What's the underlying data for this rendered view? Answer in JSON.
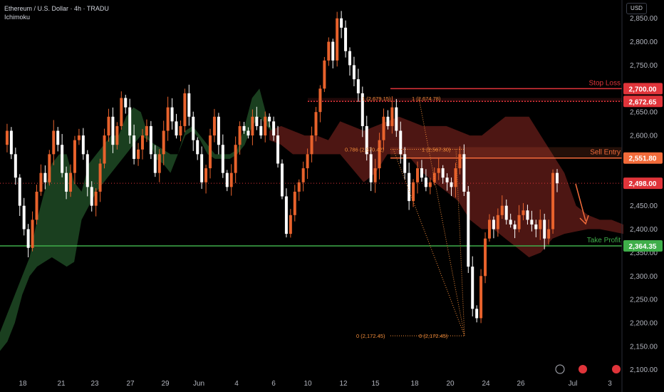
{
  "header": {
    "symbol_line": "Ethereum / U.S. Dollar · 4h · TRADU",
    "indicator": "Ichimoku"
  },
  "currency_button": "USD",
  "colors": {
    "background": "#000000",
    "bull_candle": "#e8622c",
    "bear_candle": "#ffffff",
    "bull_cloud": "#1f4a24",
    "bear_cloud": "#5a1a16",
    "stop_loss": "#e0343a",
    "sell_entry": "#f26b3a",
    "take_profit": "#3fae4a",
    "price_line": "#e0343a",
    "fib": "#f28c3a"
  },
  "chart_data": {
    "type": "candlestick",
    "y_axis": {
      "ticks": [
        "2,850.00",
        "2,800.00",
        "2,750.00",
        "2,700.00",
        "2,650.00",
        "2,600.00",
        "2,550.00",
        "2,500.00",
        "2,450.00",
        "2,400.00",
        "2,350.00",
        "2,300.00",
        "2,250.00",
        "2,200.00",
        "2,150.00",
        "2,100.00"
      ],
      "range": [
        2092,
        2880
      ]
    },
    "x_axis": {
      "ticks": [
        "18",
        "21",
        "23",
        "27",
        "29",
        "Jun",
        "4",
        "6",
        "10",
        "12",
        "15",
        "18",
        "20",
        "24",
        "26",
        "Jul",
        "3"
      ]
    },
    "levels": [
      {
        "name": "Stop Loss",
        "value": 2700.0,
        "badge": "2,700.00"
      },
      {
        "name": "Sell Entry",
        "value": 2551.8,
        "badge": "2,551.80"
      },
      {
        "name": "Take Profit",
        "value": 2364.35,
        "badge": "2,364.35"
      }
    ],
    "dotted_level": {
      "value": 2672.65,
      "badge": "2,672.65"
    },
    "current_price": {
      "value": 2498.0,
      "badge": "2,498.00"
    },
    "fib_labels": [
      "1 (2,679.15)",
      "1 (2,674.78)",
      "0.786 (2,570.42)",
      "1 (2,567.30)",
      "0 (2,172.45)",
      "0 (2,172.45)"
    ],
    "price_path": [
      2580,
      2610,
      2560,
      2510,
      2450,
      2400,
      2360,
      2420,
      2480,
      2520,
      2500,
      2560,
      2610,
      2580,
      2520,
      2480,
      2520,
      2590,
      2600,
      2560,
      2490,
      2450,
      2480,
      2540,
      2600,
      2640,
      2580,
      2620,
      2680,
      2660,
      2600,
      2550,
      2570,
      2600,
      2620,
      2560,
      2520,
      2560,
      2610,
      2660,
      2630,
      2600,
      2620,
      2690,
      2640,
      2590,
      2560,
      2500,
      2530,
      2600,
      2640,
      2580,
      2520,
      2490,
      2520,
      2580,
      2620,
      2610,
      2600,
      2640,
      2620,
      2600,
      2640,
      2630,
      2600,
      2540,
      2470,
      2390,
      2430,
      2480,
      2500,
      2530,
      2560,
      2600,
      2650,
      2700,
      2760,
      2800,
      2760,
      2850,
      2830,
      2780,
      2750,
      2720,
      2690,
      2620,
      2560,
      2500,
      2530,
      2590,
      2640,
      2620,
      2660,
      2610,
      2560,
      2520,
      2460,
      2500,
      2530,
      2510,
      2490,
      2500,
      2520,
      2530,
      2510,
      2500,
      2490,
      2530,
      2560,
      2480,
      2320,
      2230,
      2210,
      2300,
      2380,
      2420,
      2400,
      2430,
      2450,
      2420,
      2410,
      2400,
      2430,
      2440,
      2420,
      2410,
      2400,
      2420,
      2380,
      2400,
      2520,
      2498
    ],
    "cloud": {
      "bull_upper": [
        2180,
        2220,
        2260,
        2300,
        2340,
        2420,
        2480,
        2540,
        2560,
        2560,
        2500,
        2480,
        2540,
        2560,
        2580,
        2600,
        2600,
        2640,
        2660,
        2650,
        2600,
        2550,
        2540,
        2520,
        2560,
        2610,
        2620,
        2600,
        2580,
        2560,
        2560,
        2560,
        2570,
        2620,
        2680,
        2700,
        2640,
        2600
      ],
      "bull_lower": [
        2140,
        2160,
        2200,
        2260,
        2300,
        2320,
        2330,
        2340,
        2330,
        2320,
        2330,
        2420,
        2450,
        2480,
        2500,
        2520,
        2540,
        2560,
        2580,
        2600,
        2590,
        2580,
        2570,
        2560,
        2560,
        2600,
        2610,
        2590,
        2560,
        2550,
        2550,
        2550,
        2560,
        2580,
        2620,
        2640,
        2620,
        2600
      ],
      "bear_upper": [
        2610,
        2620,
        2610,
        2600,
        2600,
        2590,
        2630,
        2620,
        2610,
        2620,
        2630,
        2640,
        2630,
        2620,
        2620,
        2620,
        2610,
        2600,
        2600,
        2620,
        2640,
        2640,
        2640,
        2600,
        2560,
        2520,
        2450,
        2430,
        2420,
        2420,
        2410
      ],
      "bear_lower": [
        2590,
        2580,
        2560,
        2560,
        2560,
        2560,
        2560,
        2530,
        2500,
        2520,
        2560,
        2560,
        2550,
        2520,
        2500,
        2480,
        2460,
        2420,
        2400,
        2400,
        2380,
        2360,
        2340,
        2350,
        2380,
        2390,
        2395,
        2400,
        2400,
        2395,
        2390
      ]
    }
  }
}
